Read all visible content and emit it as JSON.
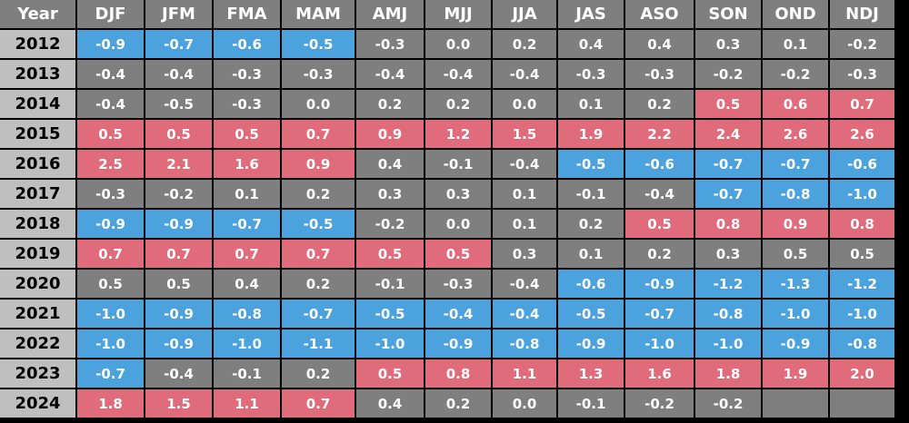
{
  "chart_data": {
    "type": "table",
    "header": {
      "year": "Year",
      "seasons": [
        "DJF",
        "JFM",
        "FMA",
        "MAM",
        "AMJ",
        "MJJ",
        "JJA",
        "JAS",
        "ASO",
        "SON",
        "OND",
        "NDJ"
      ]
    },
    "rows": [
      {
        "year": "2012",
        "values": [
          "-0.9",
          "-0.7",
          "-0.6",
          "-0.5",
          "-0.3",
          "0.0",
          "0.2",
          "0.4",
          "0.4",
          "0.3",
          "0.1",
          "-0.2"
        ]
      },
      {
        "year": "2013",
        "values": [
          "-0.4",
          "-0.4",
          "-0.3",
          "-0.3",
          "-0.4",
          "-0.4",
          "-0.4",
          "-0.3",
          "-0.3",
          "-0.2",
          "-0.2",
          "-0.3"
        ]
      },
      {
        "year": "2014",
        "values": [
          "-0.4",
          "-0.5",
          "-0.3",
          "0.0",
          "0.2",
          "0.2",
          "0.0",
          "0.1",
          "0.2",
          "0.5",
          "0.6",
          "0.7"
        ]
      },
      {
        "year": "2015",
        "values": [
          "0.5",
          "0.5",
          "0.5",
          "0.7",
          "0.9",
          "1.2",
          "1.5",
          "1.9",
          "2.2",
          "2.4",
          "2.6",
          "2.6"
        ]
      },
      {
        "year": "2016",
        "values": [
          "2.5",
          "2.1",
          "1.6",
          "0.9",
          "0.4",
          "-0.1",
          "-0.4",
          "-0.5",
          "-0.6",
          "-0.7",
          "-0.7",
          "-0.6"
        ]
      },
      {
        "year": "2017",
        "values": [
          "-0.3",
          "-0.2",
          "0.1",
          "0.2",
          "0.3",
          "0.3",
          "0.1",
          "-0.1",
          "-0.4",
          "-0.7",
          "-0.8",
          "-1.0"
        ]
      },
      {
        "year": "2018",
        "values": [
          "-0.9",
          "-0.9",
          "-0.7",
          "-0.5",
          "-0.2",
          "0.0",
          "0.1",
          "0.2",
          "0.5",
          "0.8",
          "0.9",
          "0.8"
        ]
      },
      {
        "year": "2019",
        "values": [
          "0.7",
          "0.7",
          "0.7",
          "0.7",
          "0.5",
          "0.5",
          "0.3",
          "0.1",
          "0.2",
          "0.3",
          "0.5",
          "0.5"
        ]
      },
      {
        "year": "2020",
        "values": [
          "0.5",
          "0.5",
          "0.4",
          "0.2",
          "-0.1",
          "-0.3",
          "-0.4",
          "-0.6",
          "-0.9",
          "-1.2",
          "-1.3",
          "-1.2"
        ]
      },
      {
        "year": "2021",
        "values": [
          "-1.0",
          "-0.9",
          "-0.8",
          "-0.7",
          "-0.5",
          "-0.4",
          "-0.4",
          "-0.5",
          "-0.7",
          "-0.8",
          "-1.0",
          "-1.0"
        ]
      },
      {
        "year": "2022",
        "values": [
          "-1.0",
          "-0.9",
          "-1.0",
          "-1.1",
          "-1.0",
          "-0.9",
          "-0.8",
          "-0.9",
          "-1.0",
          "-1.0",
          "-0.9",
          "-0.8"
        ]
      },
      {
        "year": "2023",
        "values": [
          "-0.7",
          "-0.4",
          "-0.1",
          "0.2",
          "0.5",
          "0.8",
          "1.1",
          "1.3",
          "1.6",
          "1.8",
          "1.9",
          "2.0"
        ]
      },
      {
        "year": "2024",
        "values": [
          "1.8",
          "1.5",
          "1.1",
          "0.7",
          "0.4",
          "0.2",
          "0.0",
          "-0.1",
          "-0.2",
          "-0.2",
          "",
          ""
        ]
      }
    ],
    "colors": {
      "header_bg": "#7f7f7f",
      "year_bg": "#bfbfbf",
      "neutral": "#7f7f7f",
      "cold": "#4ba2dc",
      "warm": "#e06b7b",
      "grid": "#000000"
    },
    "classification": {
      "cold": [
        [
          0,
          1,
          2,
          3
        ],
        [],
        [],
        [],
        [
          7,
          8,
          9,
          10,
          11
        ],
        [
          9,
          10,
          11
        ],
        [
          0,
          1,
          2,
          3
        ],
        [],
        [
          7,
          8,
          9,
          10,
          11
        ],
        [
          0,
          1,
          2,
          3,
          4,
          5,
          6,
          7,
          8,
          9,
          10,
          11
        ],
        [
          0,
          1,
          2,
          3,
          4,
          5,
          6,
          7,
          8,
          9,
          10,
          11
        ],
        [
          0
        ],
        []
      ],
      "warm": [
        [],
        [],
        [
          9,
          10,
          11
        ],
        [
          0,
          1,
          2,
          3,
          4,
          5,
          6,
          7,
          8,
          9,
          10,
          11
        ],
        [
          0,
          1,
          2,
          3
        ],
        [],
        [
          8,
          9,
          10,
          11
        ],
        [
          0,
          1,
          2,
          3,
          4,
          5
        ],
        [],
        [],
        [],
        [
          4,
          5,
          6,
          7,
          8,
          9,
          10,
          11
        ],
        [
          0,
          1,
          2,
          3
        ]
      ]
    }
  }
}
